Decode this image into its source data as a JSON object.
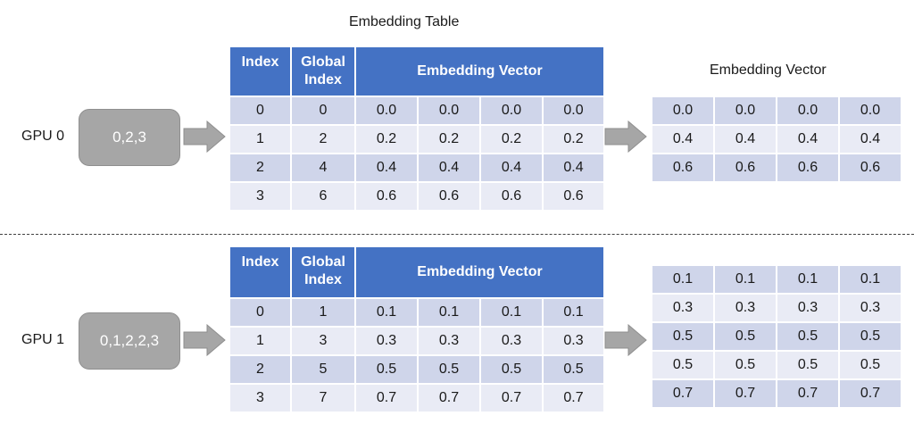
{
  "table_title": "Embedding Table",
  "output_title": "Embedding Vector",
  "headers": {
    "index": "Index",
    "global_index": "Global Index",
    "vector": "Embedding Vector"
  },
  "gpu0": {
    "label": "GPU 0",
    "ids": "0,2,3",
    "table": [
      [
        "0",
        "0",
        "0.0",
        "0.0",
        "0.0",
        "0.0"
      ],
      [
        "1",
        "2",
        "0.2",
        "0.2",
        "0.2",
        "0.2"
      ],
      [
        "2",
        "4",
        "0.4",
        "0.4",
        "0.4",
        "0.4"
      ],
      [
        "3",
        "6",
        "0.6",
        "0.6",
        "0.6",
        "0.6"
      ]
    ],
    "output": [
      [
        "0.0",
        "0.0",
        "0.0",
        "0.0"
      ],
      [
        "0.4",
        "0.4",
        "0.4",
        "0.4"
      ],
      [
        "0.6",
        "0.6",
        "0.6",
        "0.6"
      ]
    ]
  },
  "gpu1": {
    "label": "GPU 1",
    "ids": "0,1,2,2,3",
    "table": [
      [
        "0",
        "1",
        "0.1",
        "0.1",
        "0.1",
        "0.1"
      ],
      [
        "1",
        "3",
        "0.3",
        "0.3",
        "0.3",
        "0.3"
      ],
      [
        "2",
        "5",
        "0.5",
        "0.5",
        "0.5",
        "0.5"
      ],
      [
        "3",
        "7",
        "0.7",
        "0.7",
        "0.7",
        "0.7"
      ]
    ],
    "output": [
      [
        "0.1",
        "0.1",
        "0.1",
        "0.1"
      ],
      [
        "0.3",
        "0.3",
        "0.3",
        "0.3"
      ],
      [
        "0.5",
        "0.5",
        "0.5",
        "0.5"
      ],
      [
        "0.5",
        "0.5",
        "0.5",
        "0.5"
      ],
      [
        "0.7",
        "0.7",
        "0.7",
        "0.7"
      ]
    ]
  },
  "colors": {
    "header": "#4472c4",
    "row_dark": "#cfd5ea",
    "row_light": "#e9ebf5",
    "id_box": "#a6a6a6",
    "arrow": "#a6a6a6"
  }
}
